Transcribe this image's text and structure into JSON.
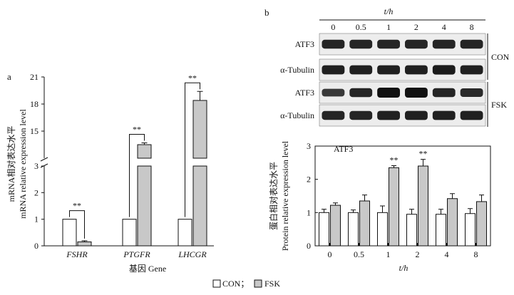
{
  "figure": {
    "panel_a_label": "a",
    "panel_b_label": "b",
    "legend": [
      {
        "label": "CON；",
        "color": "#ffffff"
      },
      {
        "label": "FSK",
        "color": "#c8c8c8"
      }
    ]
  },
  "blot": {
    "time_axis_label": "t/h",
    "time_points": [
      "0",
      "0.5",
      "1",
      "2",
      "4",
      "8"
    ],
    "rows": [
      {
        "label": "ATF3",
        "group": "CON",
        "intensity": [
          0.8,
          0.8,
          0.8,
          0.8,
          0.8,
          0.8
        ]
      },
      {
        "label": "α-Tubulin",
        "group": "CON",
        "intensity": [
          0.85,
          0.85,
          0.85,
          0.85,
          0.9,
          0.85
        ]
      },
      {
        "label": "ATF3",
        "group": "FSK",
        "intensity": [
          0.6,
          0.8,
          1.0,
          1.0,
          0.8,
          0.75
        ]
      },
      {
        "label": "α-Tubulin",
        "group": "FSK",
        "intensity": [
          0.8,
          0.8,
          0.85,
          0.85,
          0.85,
          0.85
        ]
      }
    ],
    "groups": [
      "CON",
      "FSK"
    ]
  },
  "chart_data": [
    {
      "type": "bar",
      "panel": "a",
      "categories": [
        "FSHR",
        "PTGFR",
        "LHCGR"
      ],
      "series": [
        {
          "name": "CON",
          "values": [
            1.0,
            1.0,
            1.0
          ],
          "errors": [
            0.0,
            0.0,
            0.0
          ]
        },
        {
          "name": "FSK",
          "values": [
            0.15,
            13.5,
            18.4
          ],
          "errors": [
            0.04,
            0.2,
            1.0
          ]
        }
      ],
      "significance": [
        "**",
        "**",
        "**"
      ],
      "xlabel": "基因 Gene",
      "ylabel_cn": "mRNA相对表达水平",
      "ylabel_en": "mRNA relative expression level",
      "y_broken": true,
      "lower_range": [
        0,
        3
      ],
      "upper_range": [
        12,
        21
      ],
      "lower_ticks": [
        "0",
        "1",
        "2",
        "3"
      ],
      "upper_ticks": [
        "15",
        "18",
        "21"
      ]
    },
    {
      "type": "bar",
      "panel": "b",
      "title": "ATF3",
      "categories": [
        "0",
        "0.5",
        "1",
        "2",
        "4",
        "8"
      ],
      "series": [
        {
          "name": "CON",
          "values": [
            1.0,
            1.0,
            1.0,
            0.95,
            0.95,
            0.97
          ],
          "errors": [
            0.1,
            0.08,
            0.2,
            0.15,
            0.15,
            0.15
          ]
        },
        {
          "name": "FSK",
          "values": [
            1.22,
            1.35,
            2.35,
            2.4,
            1.42,
            1.33
          ],
          "errors": [
            0.07,
            0.18,
            0.06,
            0.2,
            0.15,
            0.2
          ]
        }
      ],
      "significance": [
        "",
        "",
        "**",
        "**",
        "",
        ""
      ],
      "xlabel": "t/h",
      "ylabel_cn": "蛋白相对表达水平",
      "ylabel_en": "Protein relative expression level",
      "ylim": [
        0,
        3
      ],
      "yticks": [
        "0",
        "1",
        "2",
        "3"
      ]
    }
  ]
}
